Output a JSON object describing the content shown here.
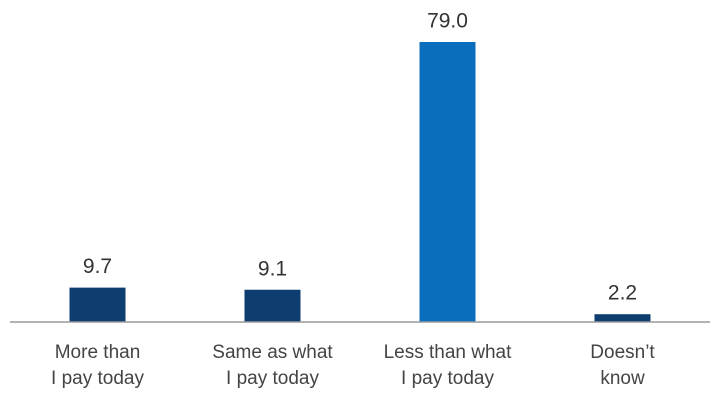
{
  "chart_data": {
    "type": "bar",
    "categories": [
      "More than\nI pay today",
      "Same as what\nI pay today",
      "Less than what\nI pay today",
      "Doesn’t\nknow"
    ],
    "values": [
      9.7,
      9.1,
      79.0,
      2.2
    ],
    "value_labels": [
      "9.7",
      "9.1",
      "79.0",
      "2.2"
    ],
    "colors": [
      "#0e3d6f",
      "#0e3d6f",
      "#0a6ebd",
      "#0e3d6f"
    ]
  }
}
